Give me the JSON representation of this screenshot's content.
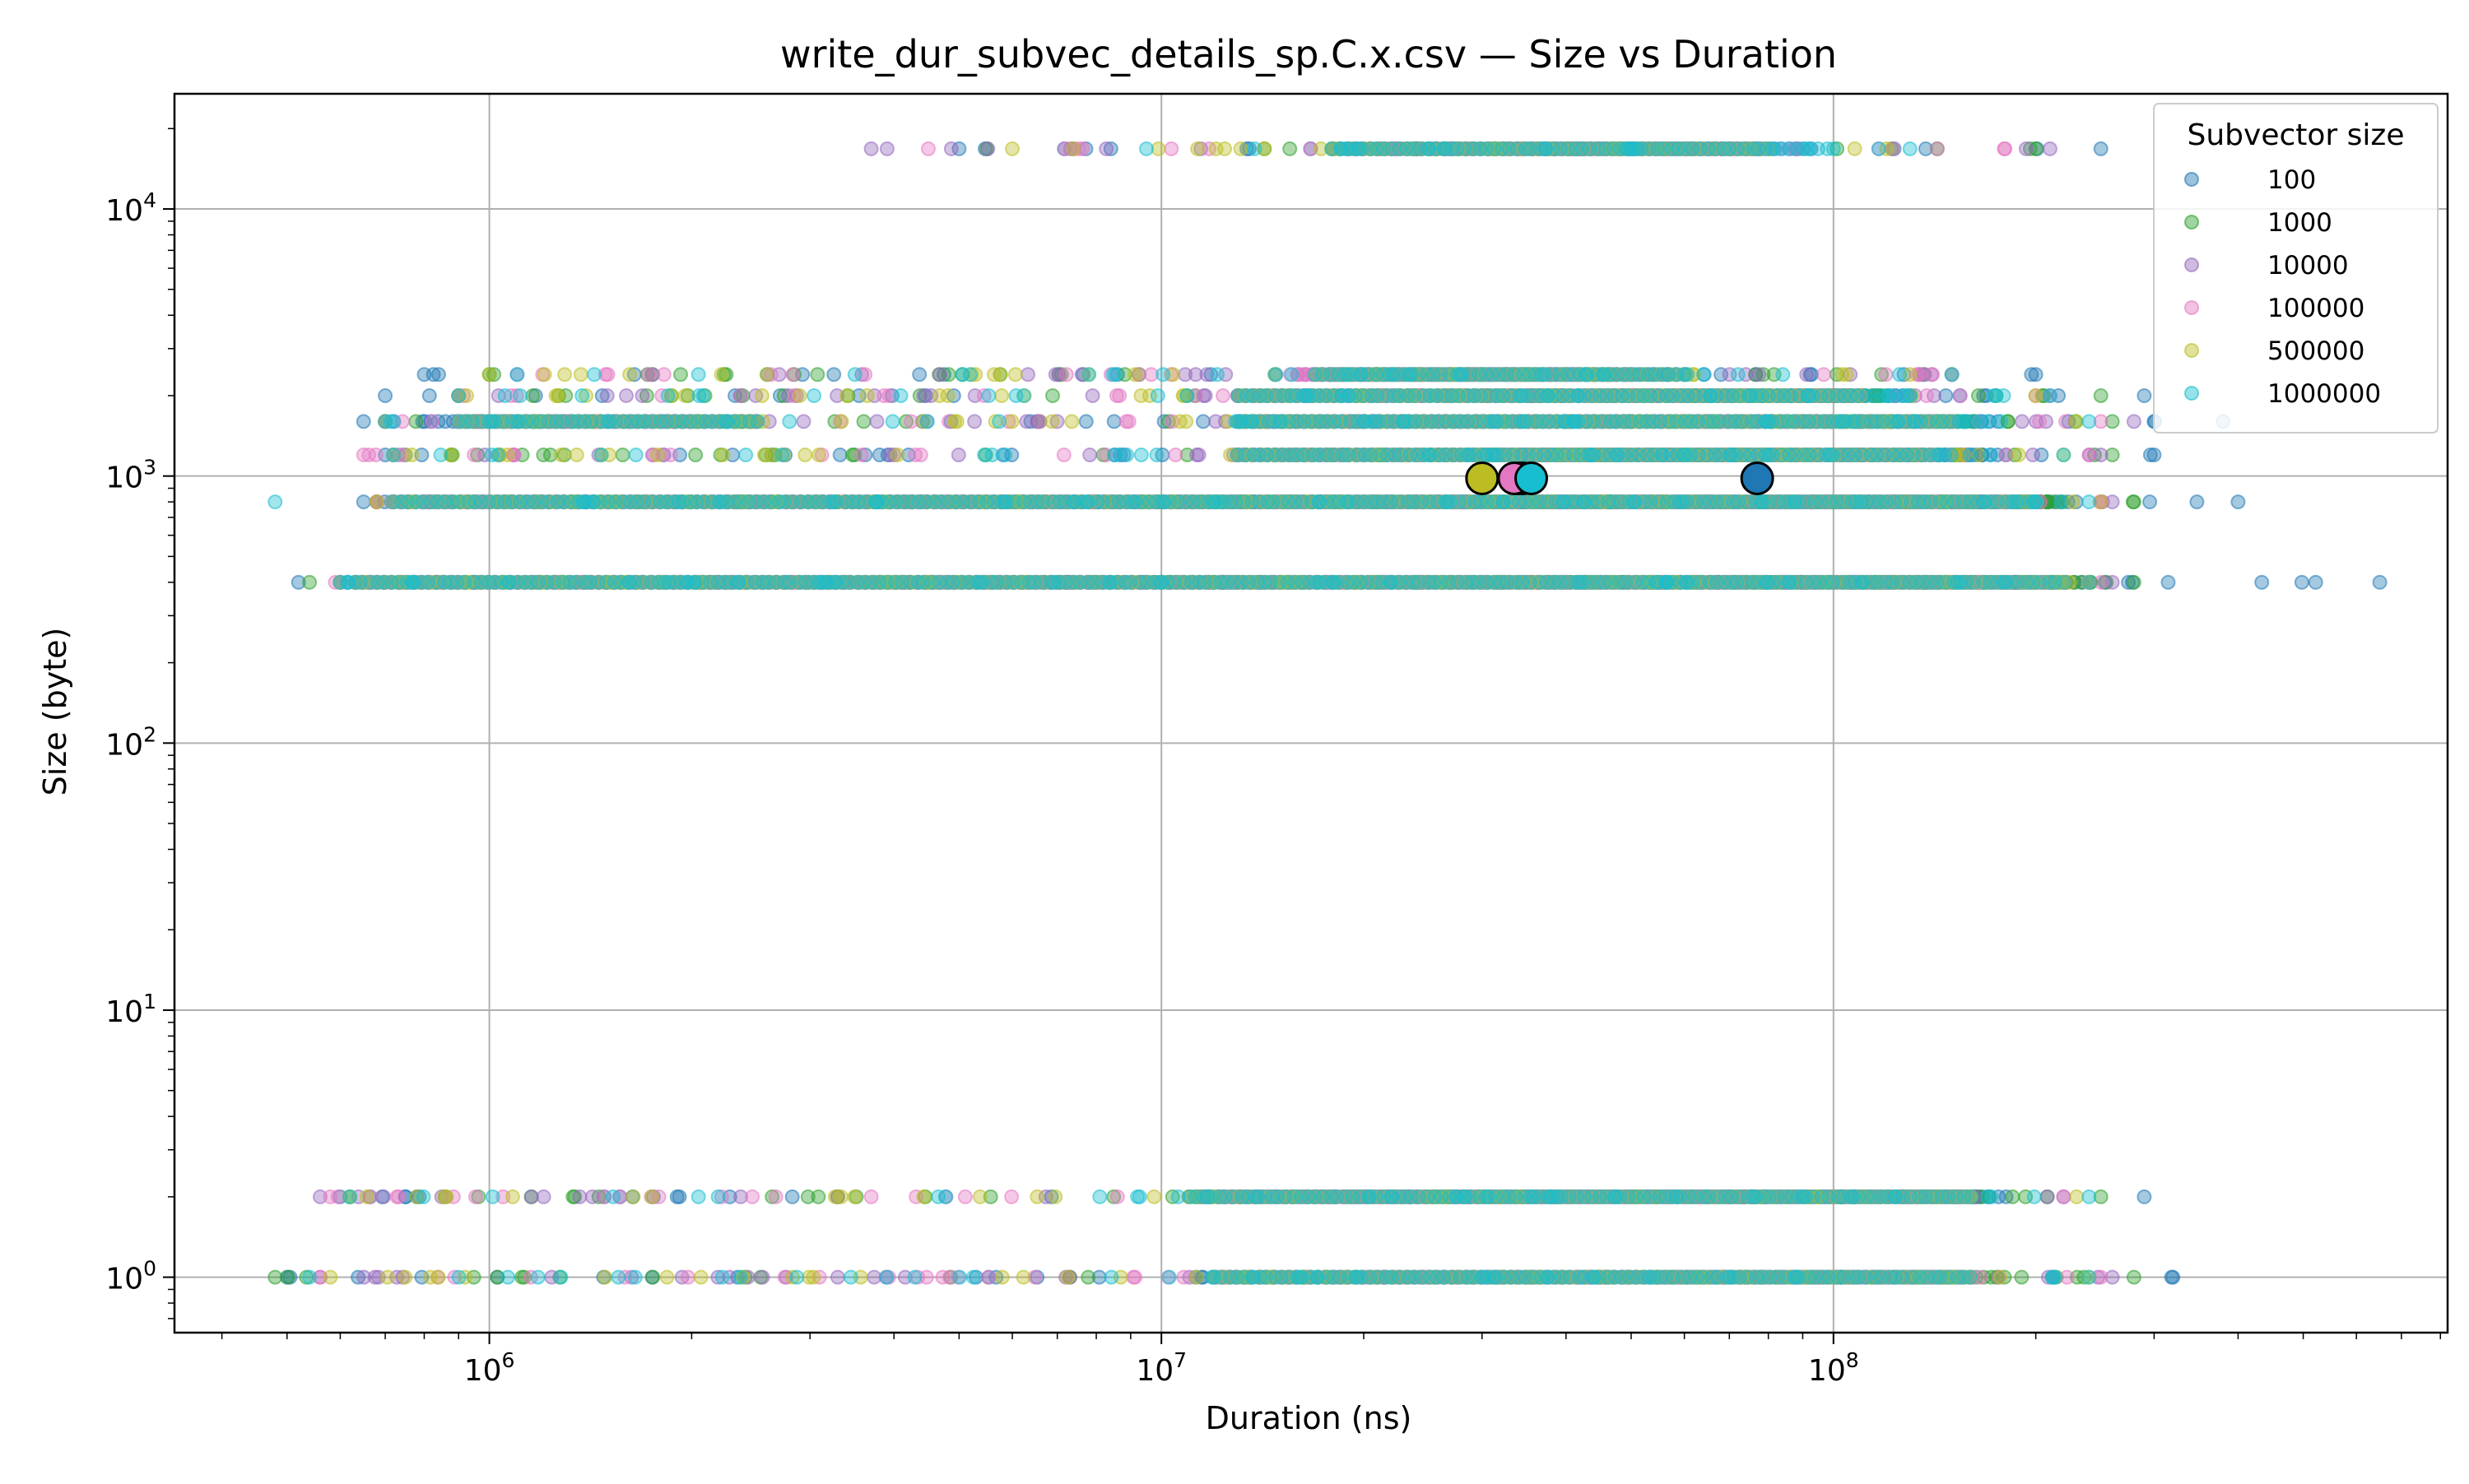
{
  "chart_data": {
    "type": "scatter",
    "title": "write_dur_subvec_details_sp.C.x.csv — Size vs Duration",
    "xlabel": "Duration (ns)",
    "ylabel": "Size (byte)",
    "x_scale": "log",
    "y_scale": "log",
    "xlim": [
      340000,
      820000000
    ],
    "ylim": [
      0.62,
      27000
    ],
    "grid": true,
    "x_ticks": [
      {
        "value": 1000000,
        "base": "10",
        "exp": "6"
      },
      {
        "value": 10000000,
        "base": "10",
        "exp": "7"
      },
      {
        "value": 100000000,
        "base": "10",
        "exp": "8"
      }
    ],
    "y_ticks": [
      {
        "value": 1,
        "base": "10",
        "exp": "0"
      },
      {
        "value": 10,
        "base": "10",
        "exp": "1"
      },
      {
        "value": 100,
        "base": "10",
        "exp": "2"
      },
      {
        "value": 1000,
        "base": "10",
        "exp": "3"
      },
      {
        "value": 10000,
        "base": "10",
        "exp": "4"
      }
    ],
    "legend": {
      "title": "Subvector size",
      "position": "top-right"
    },
    "series": [
      {
        "name": "100",
        "color": "#1f77b4",
        "bands": [
          {
            "y": 16800,
            "dense": [
              [
                25000000,
                70000000
              ]
            ],
            "sparse": [
              [
                5000000,
                250000000
              ]
            ]
          },
          {
            "y": 2400,
            "dense": [
              [
                17000000,
                55000000
              ]
            ],
            "sparse": [
              [
                800000,
                200000000
              ]
            ]
          },
          {
            "y": 2000,
            "dense": [
              [
                13000000,
                130000000
              ]
            ],
            "sparse": [
              [
                700000,
                290000000
              ]
            ]
          },
          {
            "y": 1600,
            "dense": [
              [
                800000,
                2500000
              ],
              [
                13000000,
                170000000
              ]
            ],
            "sparse": [
              [
                650000,
                380000000
              ]
            ]
          },
          {
            "y": 1200,
            "dense": [
              [
                13000000,
                180000000
              ]
            ],
            "sparse": [
              [
                700000,
                300000000
              ]
            ]
          },
          {
            "y": 800,
            "dense": [
              [
                700000,
                230000000
              ]
            ],
            "sparse": [
              [
                650000,
                400000000
              ]
            ]
          },
          {
            "y": 400,
            "dense": [
              [
                600000,
                240000000
              ]
            ],
            "sparse": [
              [
                520000,
                650000000
              ]
            ]
          },
          {
            "y": 2,
            "dense": [
              [
                11000000,
                180000000
              ]
            ],
            "sparse": [
              [
                600000,
                290000000
              ]
            ]
          },
          {
            "y": 1,
            "dense": [
              [
                12000000,
                150000000
              ]
            ],
            "sparse": [
              [
                500000,
                320000000
              ]
            ]
          }
        ],
        "mean": {
          "x": 77000000,
          "y": 980
        }
      },
      {
        "name": "1000",
        "color": "#2ca02c",
        "bands": [
          {
            "y": 16800,
            "dense": [
              [
                18000000,
                80000000
              ]
            ],
            "sparse": [
              [
                5500000,
                200000000
              ]
            ]
          },
          {
            "y": 2400,
            "dense": [
              [
                18000000,
                50000000
              ]
            ],
            "sparse": [
              [
                1000000,
                150000000
              ]
            ]
          },
          {
            "y": 2000,
            "dense": [
              [
                13000000,
                120000000
              ]
            ],
            "sparse": [
              [
                900000,
                250000000
              ]
            ]
          },
          {
            "y": 1600,
            "dense": [
              [
                900000,
                2500000
              ],
              [
                13000000,
                160000000
              ]
            ],
            "sparse": [
              [
                700000,
                260000000
              ]
            ]
          },
          {
            "y": 1200,
            "dense": [
              [
                13000000,
                150000000
              ]
            ],
            "sparse": [
              [
                750000,
                260000000
              ]
            ]
          },
          {
            "y": 800,
            "dense": [
              [
                720000,
                220000000
              ]
            ],
            "sparse": [
              [
                680000,
                280000000
              ]
            ]
          },
          {
            "y": 400,
            "dense": [
              [
                630000,
                240000000
              ]
            ],
            "sparse": [
              [
                540000,
                280000000
              ]
            ]
          },
          {
            "y": 2,
            "dense": [
              [
                11500000,
                170000000
              ]
            ],
            "sparse": [
              [
                620000,
                250000000
              ]
            ]
          },
          {
            "y": 1,
            "dense": [
              [
                12000000,
                180000000
              ]
            ],
            "sparse": [
              [
                480000,
                280000000
              ]
            ]
          }
        ],
        "mean": {
          "x": 34500000,
          "y": 980
        }
      },
      {
        "name": "10000",
        "color": "#9467bd",
        "bands": [
          {
            "y": 16800,
            "dense": [
              [
                18000000,
                90000000
              ]
            ],
            "sparse": [
              [
                3700000,
                210000000
              ]
            ]
          },
          {
            "y": 2400,
            "dense": [
              [
                16000000,
                60000000
              ]
            ],
            "sparse": [
              [
                1100000,
                140000000
              ]
            ]
          },
          {
            "y": 2000,
            "dense": [
              [
                13000000,
                110000000
              ]
            ],
            "sparse": [
              [
                900000,
                210000000
              ]
            ]
          },
          {
            "y": 1600,
            "dense": [
              [
                900000,
                2500000
              ],
              [
                13000000,
                150000000
              ]
            ],
            "sparse": [
              [
                700000,
                280000000
              ]
            ]
          },
          {
            "y": 1200,
            "dense": [
              [
                13000000,
                140000000
              ]
            ],
            "sparse": [
              [
                720000,
                250000000
              ]
            ]
          },
          {
            "y": 800,
            "dense": [
              [
                720000,
                200000000
              ]
            ],
            "sparse": [
              [
                680000,
                260000000
              ]
            ]
          },
          {
            "y": 400,
            "dense": [
              [
                630000,
                220000000
              ]
            ],
            "sparse": [
              [
                600000,
                260000000
              ]
            ]
          },
          {
            "y": 2,
            "dense": [
              [
                11500000,
                160000000
              ]
            ],
            "sparse": [
              [
                560000,
                220000000
              ]
            ]
          },
          {
            "y": 1,
            "dense": [
              [
                12000000,
                160000000
              ]
            ],
            "sparse": [
              [
                560000,
                260000000
              ]
            ]
          }
        ],
        "mean": {
          "x": 34000000,
          "y": 980
        }
      },
      {
        "name": "100000",
        "color": "#e377c2",
        "bands": [
          {
            "y": 16800,
            "dense": [
              [
                18000000,
                80000000
              ]
            ],
            "sparse": [
              [
                4500000,
                180000000
              ]
            ]
          },
          {
            "y": 2400,
            "dense": [
              [
                16000000,
                50000000
              ]
            ],
            "sparse": [
              [
                1200000,
                150000000
              ]
            ]
          },
          {
            "y": 2000,
            "dense": [
              [
                13000000,
                110000000
              ]
            ],
            "sparse": [
              [
                900000,
                200000000
              ]
            ]
          },
          {
            "y": 1600,
            "dense": [
              [
                900000,
                2500000
              ],
              [
                13000000,
                150000000
              ]
            ],
            "sparse": [
              [
                700000,
                250000000
              ]
            ]
          },
          {
            "y": 1200,
            "dense": [
              [
                13000000,
                140000000
              ]
            ],
            "sparse": [
              [
                650000,
                240000000
              ]
            ]
          },
          {
            "y": 800,
            "dense": [
              [
                720000,
                200000000
              ]
            ],
            "sparse": [
              [
                680000,
                250000000
              ]
            ]
          },
          {
            "y": 400,
            "dense": [
              [
                630000,
                220000000
              ]
            ],
            "sparse": [
              [
                590000,
                250000000
              ]
            ]
          },
          {
            "y": 2,
            "dense": [
              [
                11500000,
                160000000
              ]
            ],
            "sparse": [
              [
                580000,
                220000000
              ]
            ]
          },
          {
            "y": 1,
            "dense": [
              [
                12000000,
                160000000
              ]
            ],
            "sparse": [
              [
                560000,
                250000000
              ]
            ]
          }
        ],
        "mean": {
          "x": 33500000,
          "y": 980
        }
      },
      {
        "name": "500000",
        "color": "#bcbd22",
        "bands": [
          {
            "y": 16800,
            "dense": [
              [
                18000000,
                80000000
              ]
            ],
            "sparse": [
              [
                6000000,
                120000000
              ]
            ]
          },
          {
            "y": 2400,
            "dense": [
              [
                17000000,
                60000000
              ]
            ],
            "sparse": [
              [
                1000000,
                130000000
              ]
            ]
          },
          {
            "y": 2000,
            "dense": [
              [
                13000000,
                110000000
              ]
            ],
            "sparse": [
              [
                900000,
                200000000
              ]
            ]
          },
          {
            "y": 1600,
            "dense": [
              [
                900000,
                2500000
              ],
              [
                13000000,
                150000000
              ]
            ],
            "sparse": [
              [
                700000,
                230000000
              ]
            ]
          },
          {
            "y": 1200,
            "dense": [
              [
                13000000,
                140000000
              ]
            ],
            "sparse": [
              [
                720000,
                220000000
              ]
            ]
          },
          {
            "y": 800,
            "dense": [
              [
                720000,
                200000000
              ]
            ],
            "sparse": [
              [
                680000,
                250000000
              ]
            ]
          },
          {
            "y": 400,
            "dense": [
              [
                630000,
                220000000
              ]
            ],
            "sparse": [
              [
                600000,
                240000000
              ]
            ]
          },
          {
            "y": 2,
            "dense": [
              [
                11000000,
                160000000
              ]
            ],
            "sparse": [
              [
                620000,
                230000000
              ]
            ]
          },
          {
            "y": 1,
            "dense": [
              [
                12000000,
                160000000
              ]
            ],
            "sparse": [
              [
                580000,
                240000000
              ]
            ]
          }
        ],
        "mean": {
          "x": 30000000,
          "y": 980
        }
      },
      {
        "name": "1000000",
        "color": "#17becf",
        "bands": [
          {
            "y": 16800,
            "dense": [
              [
                18000000,
                100000000
              ]
            ],
            "sparse": [
              [
                9500000,
                130000000
              ]
            ]
          },
          {
            "y": 2400,
            "dense": [
              [
                17000000,
                60000000
              ]
            ],
            "sparse": [
              [
                1100000,
                150000000
              ]
            ]
          },
          {
            "y": 2000,
            "dense": [
              [
                13000000,
                130000000
              ]
            ],
            "sparse": [
              [
                900000,
                210000000
              ]
            ]
          },
          {
            "y": 1600,
            "dense": [
              [
                900000,
                2500000
              ],
              [
                13000000,
                170000000
              ]
            ],
            "sparse": [
              [
                700000,
                240000000
              ]
            ]
          },
          {
            "y": 1200,
            "dense": [
              [
                13000000,
                150000000
              ]
            ],
            "sparse": [
              [
                720000,
                220000000
              ]
            ]
          },
          {
            "y": 800,
            "dense": [
              [
                720000,
                200000000
              ]
            ],
            "sparse": [
              [
                480000,
                240000000
              ]
            ]
          },
          {
            "y": 400,
            "dense": [
              [
                630000,
                220000000
              ]
            ],
            "sparse": [
              [
                600000,
                240000000
              ]
            ]
          },
          {
            "y": 2,
            "dense": [
              [
                11000000,
                160000000
              ]
            ],
            "sparse": [
              [
                620000,
                240000000
              ]
            ]
          },
          {
            "y": 1,
            "dense": [
              [
                12000000,
                160000000
              ]
            ],
            "sparse": [
              [
                540000,
                240000000
              ]
            ]
          }
        ],
        "mean": {
          "x": 35500000,
          "y": 980
        }
      }
    ]
  }
}
